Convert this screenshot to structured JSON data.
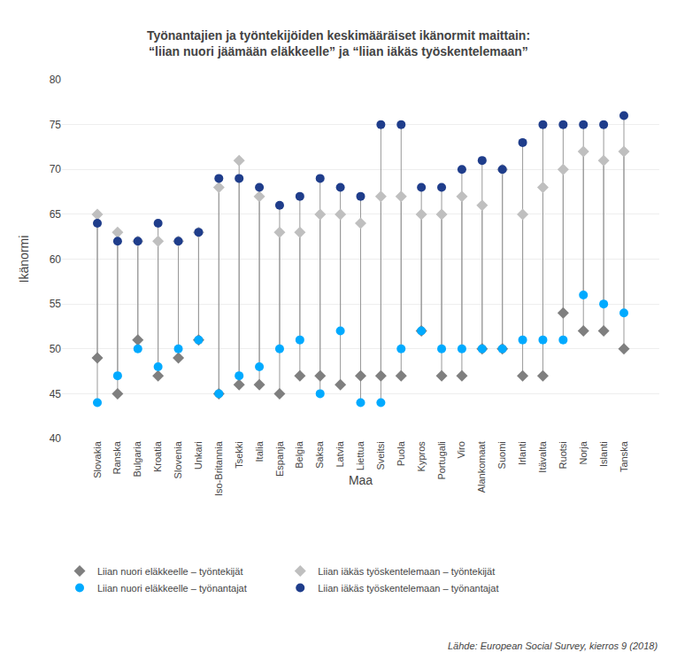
{
  "chart_data": {
    "type": "scatter",
    "title": "Työnantajien ja työntekijöiden keskimääräiset ikänormit maittain:\n“liian nuori jäämään eläkkeelle” ja “liian iäkäs työskentelemaan”",
    "xlabel": "Maa",
    "ylabel": "Ikänormi",
    "categories": [
      "Slovakia",
      "Ranska",
      "Bulgaria",
      "Kroatia",
      "Slovenia",
      "Unkari",
      "Iso-Britannia",
      "Tsekki",
      "Italia",
      "Espanja",
      "Belgia",
      "Saksa",
      "Latvia",
      "Liettua",
      "Sveitsi",
      "Puola",
      "Kypros",
      "Portugali",
      "Viro",
      "Alankomaat",
      "Suomi",
      "Irlanti",
      "Itävalta",
      "Ruotsi",
      "Norja",
      "Islanti",
      "Tanska"
    ],
    "series": [
      {
        "name": "Liian nuori eläkkeelle – työntekijät",
        "color": "#7f7f7f",
        "marker": "diamond",
        "values": [
          49,
          45,
          51,
          47,
          49,
          51,
          45,
          46,
          46,
          45,
          47,
          47,
          46,
          47,
          47,
          47,
          52,
          47,
          47,
          50,
          50,
          47,
          47,
          54,
          52,
          52,
          50
        ]
      },
      {
        "name": "Liian iäkäs työskentelemaan – työntekijät",
        "color": "#bfbfbf",
        "marker": "diamond",
        "values": [
          65,
          63,
          62,
          62,
          62,
          63,
          68,
          71,
          67,
          63,
          63,
          65,
          65,
          64,
          67,
          67,
          65,
          65,
          67,
          66,
          70,
          65,
          68,
          70,
          72,
          71,
          72
        ]
      },
      {
        "name": "Liian nuori eläkkeelle – työnantajat",
        "color": "#00aaff",
        "marker": "circle",
        "values": [
          44,
          47,
          50,
          48,
          50,
          51,
          45,
          47,
          48,
          50,
          51,
          45,
          52,
          44,
          44,
          50,
          52,
          50,
          50,
          50,
          50,
          51,
          51,
          51,
          56,
          55,
          54
        ]
      },
      {
        "name": "Liian iäkäs työskentelemaan – työnantajat",
        "color": "#1f3d8b",
        "marker": "circle",
        "values": [
          64,
          62,
          62,
          64,
          62,
          63,
          69,
          69,
          68,
          66,
          67,
          69,
          68,
          67,
          75,
          75,
          68,
          68,
          70,
          71,
          70,
          73,
          75,
          75,
          75,
          75,
          76
        ]
      }
    ],
    "ylim": [
      40,
      80
    ],
    "yticks": [
      40,
      45,
      50,
      55,
      60,
      65,
      70,
      75,
      80
    ],
    "grid": true,
    "legend": "below",
    "annotations": [
      "Lähde: European Social Survey, kierros 9 (2018)"
    ]
  }
}
